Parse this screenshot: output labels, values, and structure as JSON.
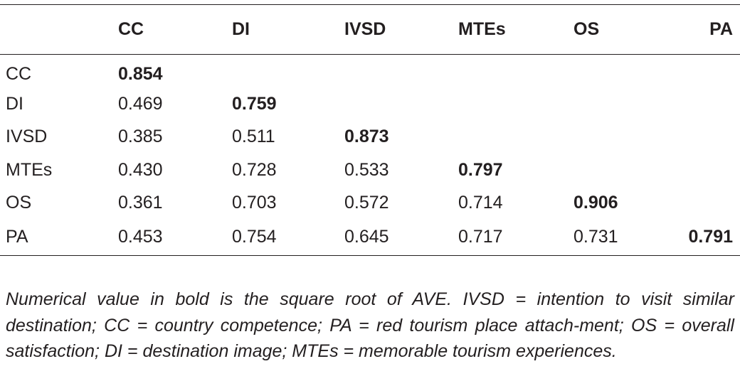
{
  "table": {
    "headers": [
      "",
      "CC",
      "DI",
      "IVSD",
      "MTEs",
      "OS",
      "PA"
    ],
    "rows": [
      {
        "label": "CC",
        "cells": [
          "0.854",
          "",
          "",
          "",
          "",
          ""
        ],
        "bold_index": 0
      },
      {
        "label": "DI",
        "cells": [
          "0.469",
          "0.759",
          "",
          "",
          "",
          ""
        ],
        "bold_index": 1
      },
      {
        "label": "IVSD",
        "cells": [
          "0.385",
          "0.511",
          "0.873",
          "",
          "",
          ""
        ],
        "bold_index": 2
      },
      {
        "label": "MTEs",
        "cells": [
          "0.430",
          "0.728",
          "0.533",
          "0.797",
          "",
          ""
        ],
        "bold_index": 3
      },
      {
        "label": "OS",
        "cells": [
          "0.361",
          "0.703",
          "0.572",
          "0.714",
          "0.906",
          ""
        ],
        "bold_index": 4
      },
      {
        "label": "PA",
        "cells": [
          "0.453",
          "0.754",
          "0.645",
          "0.717",
          "0.731",
          "0.791"
        ],
        "bold_index": 5
      }
    ]
  },
  "footnote": "Numerical value in bold is the square root of AVE. IVSD = intention to visit similar destination; CC = country competence; PA = red tourism place attach-ment; OS = overall satisfaction; DI = destination image; MTEs = memorable tourism experiences."
}
